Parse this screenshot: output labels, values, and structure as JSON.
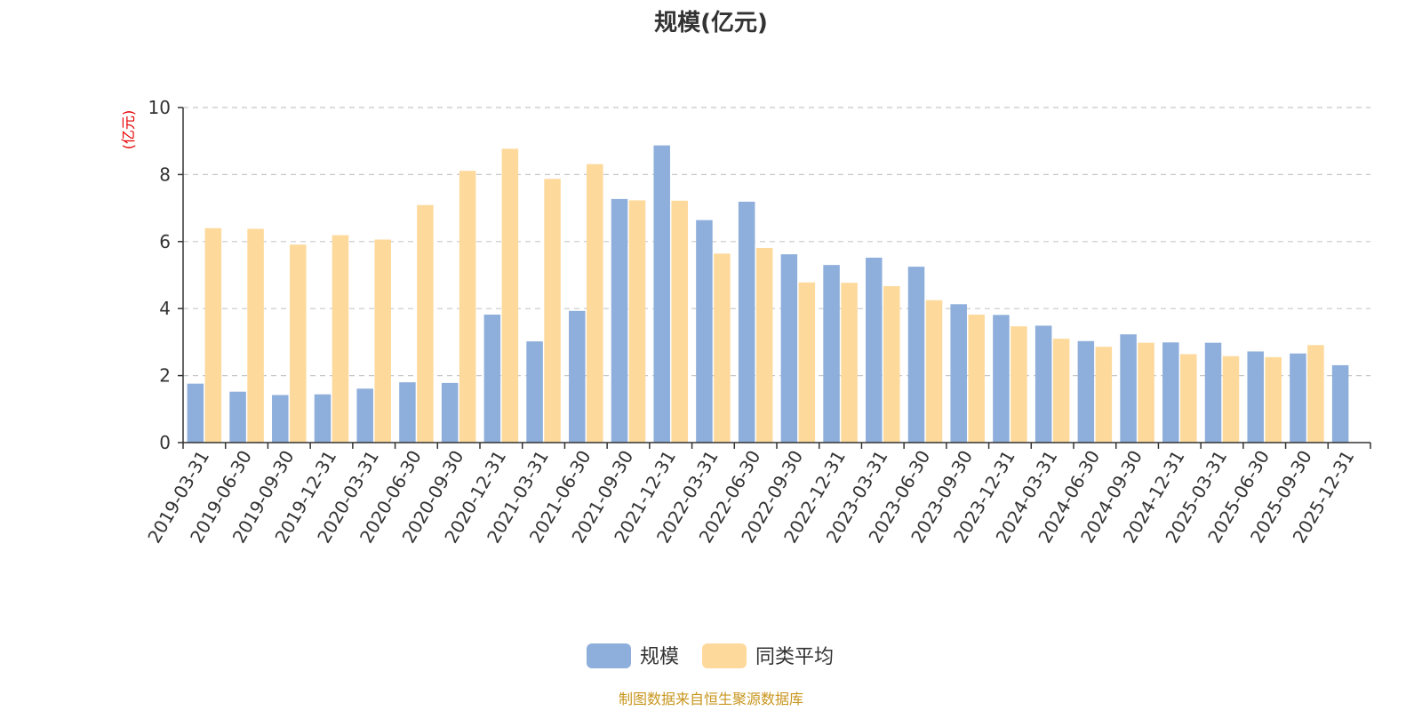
{
  "chart_data": {
    "type": "bar",
    "title": "规模(亿元)",
    "ylabel": "(亿元)",
    "ylim": [
      0,
      10
    ],
    "yticks": [
      0,
      2,
      4,
      6,
      8,
      10
    ],
    "grid": true,
    "legend_position": "bottom-center",
    "categories": [
      "2019-03-31",
      "2019-06-30",
      "2019-09-30",
      "2019-12-31",
      "2020-03-31",
      "2020-06-30",
      "2020-09-30",
      "2020-12-31",
      "2021-03-31",
      "2021-06-30",
      "2021-09-30",
      "2021-12-31",
      "2022-03-31",
      "2022-06-30",
      "2022-09-30",
      "2022-12-31",
      "2023-03-31",
      "2023-06-30",
      "2023-09-30",
      "2023-12-31",
      "2024-03-31",
      "2024-06-30",
      "2024-09-30",
      "2024-12-31",
      "2025-03-31",
      "2025-06-30",
      "2025-09-30",
      "2025-12-31"
    ],
    "series": [
      {
        "name": "规模",
        "color": "#8eaedb",
        "values": [
          1.76,
          1.52,
          1.42,
          1.44,
          1.61,
          1.8,
          1.78,
          3.82,
          3.02,
          3.93,
          7.27,
          8.87,
          6.64,
          7.19,
          5.62,
          5.3,
          5.52,
          5.25,
          4.13,
          3.81,
          3.49,
          3.03,
          3.23,
          2.99,
          2.98,
          2.72,
          2.66,
          2.31
        ]
      },
      {
        "name": "同类平均",
        "color": "#fdd99b",
        "values": [
          6.4,
          6.38,
          5.91,
          6.19,
          6.06,
          7.09,
          8.11,
          8.77,
          7.87,
          8.31,
          7.23,
          7.22,
          5.64,
          5.81,
          4.78,
          4.77,
          4.67,
          4.25,
          3.82,
          3.47,
          3.1,
          2.86,
          2.98,
          2.64,
          2.58,
          2.55,
          2.91,
          null
        ]
      }
    ]
  },
  "source_note": "制图数据来自恒生聚源数据库"
}
